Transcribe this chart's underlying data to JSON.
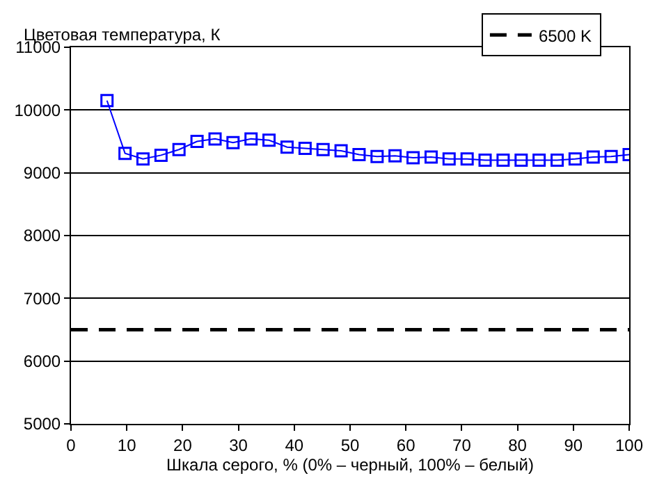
{
  "chart_data": {
    "type": "line",
    "ylabel": "Цветовая температура, К",
    "xlabel": "Шкала серого, % (0% – черный, 100% – белый)",
    "x": [
      6.45,
      9.68,
      12.9,
      16.13,
      19.35,
      22.58,
      25.81,
      29.03,
      32.26,
      35.48,
      38.71,
      41.94,
      45.16,
      48.39,
      51.61,
      54.84,
      58.06,
      61.29,
      64.52,
      67.74,
      70.97,
      74.19,
      77.42,
      80.65,
      83.87,
      87.1,
      90.32,
      93.55,
      96.77,
      100
    ],
    "series": [
      {
        "color": "#0000ff",
        "values": [
          10150,
          9310,
          9220,
          9280,
          9370,
          9500,
          9540,
          9480,
          9540,
          9520,
          9410,
          9390,
          9370,
          9350,
          9290,
          9260,
          9270,
          9240,
          9250,
          9220,
          9220,
          9200,
          9200,
          9200,
          9200,
          9200,
          9220,
          9250,
          9260,
          9290
        ]
      }
    ],
    "ref_lines": [
      {
        "axis": "y",
        "value": 6500,
        "label": "6500 K",
        "color": "#000000",
        "line_style": "dashed"
      }
    ],
    "xlim": [
      0,
      100
    ],
    "xticks": [
      0,
      10,
      20,
      30,
      40,
      50,
      60,
      70,
      80,
      90,
      100
    ],
    "ylim": [
      5000,
      11000
    ],
    "yticks": [
      5000,
      6000,
      7000,
      8000,
      9000,
      10000,
      11000
    ],
    "grid": "y",
    "legend": "top right",
    "marker": "square",
    "line_style": "solid"
  }
}
